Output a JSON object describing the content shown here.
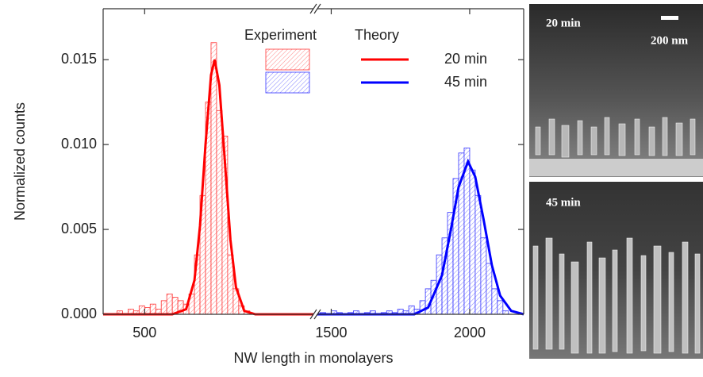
{
  "chart_data": {
    "type": "histogram",
    "xlabel": "NW length in monolayers",
    "ylabel": "Normalized counts",
    "xlim": [
      350,
      2195
    ],
    "x_break": [
      1110,
      1450
    ],
    "ylim": [
      0,
      0.018
    ],
    "xticks": [
      500,
      1500,
      2000
    ],
    "yticks": [
      {
        "value": 0,
        "label": "0.000"
      },
      {
        "value": 0.005,
        "label": "0.005"
      },
      {
        "value": 0.01,
        "label": "0.010"
      },
      {
        "value": 0.015,
        "label": "0.015"
      }
    ],
    "legend_headers": [
      "Experiment",
      "Theory"
    ],
    "histograms": [
      {
        "color": "#ff3333",
        "bins": [
          400,
          420,
          440,
          460,
          480,
          500,
          520,
          540,
          560,
          580,
          600,
          620,
          640,
          660,
          680,
          700,
          720,
          740,
          760,
          780,
          800,
          820,
          840,
          860,
          880,
          900
        ],
        "values": [
          0.0002,
          0,
          0.0003,
          0.0002,
          0.0005,
          0.0004,
          0.0006,
          0.0003,
          0.0008,
          0.0012,
          0.001,
          0.0008,
          0.0006,
          0.0012,
          0.0035,
          0.007,
          0.0125,
          0.016,
          0.012,
          0.0105,
          0.0035,
          0.0015,
          0.0005,
          0.0002,
          0
        ]
      },
      {
        "color": "#3333ff",
        "bins": [
          1460,
          1480,
          1500,
          1520,
          1540,
          1560,
          1580,
          1600,
          1620,
          1640,
          1660,
          1680,
          1700,
          1720,
          1740,
          1760,
          1780,
          1800,
          1820,
          1840,
          1860,
          1880,
          1900,
          1920,
          1940,
          1960,
          1980,
          2000,
          2020,
          2040,
          2060,
          2080,
          2100,
          2120,
          2140
        ],
        "values": [
          0.0001,
          0,
          0.0002,
          0.0001,
          0,
          0.0001,
          0.0002,
          0,
          0.0001,
          0.0002,
          0,
          0.0001,
          0.0002,
          0.0001,
          0.0003,
          0.0002,
          0.0005,
          0.0003,
          0.0008,
          0.0015,
          0.002,
          0.0035,
          0.0045,
          0.006,
          0.008,
          0.0095,
          0.0098,
          0.0085,
          0.007,
          0.0045,
          0.003,
          0.0015,
          0.0008,
          0.0002
        ]
      }
    ],
    "series": [
      {
        "name": "20 min",
        "color": "#ff0000",
        "x": [
          350,
          600,
          650,
          680,
          700,
          720,
          740,
          753,
          770,
          790,
          810,
          830,
          860,
          900,
          1110
        ],
        "values": [
          0,
          0,
          0.0003,
          0.002,
          0.0052,
          0.01,
          0.0141,
          0.015,
          0.0135,
          0.009,
          0.0044,
          0.0016,
          0.0002,
          0,
          0
        ]
      },
      {
        "name": "45 min",
        "color": "#0000ff",
        "x": [
          1450,
          1750,
          1800,
          1850,
          1900,
          1930,
          1960,
          1994,
          2020,
          2050,
          2080,
          2110,
          2150,
          2195
        ],
        "values": [
          0,
          0,
          0,
          0.0004,
          0.0023,
          0.0048,
          0.0075,
          0.009,
          0.0081,
          0.0056,
          0.0029,
          0.0011,
          0.0002,
          0
        ]
      }
    ]
  },
  "images": {
    "panels": [
      {
        "label": "20 min",
        "scale_bar": "200 nm"
      },
      {
        "label": "45 min"
      }
    ]
  }
}
